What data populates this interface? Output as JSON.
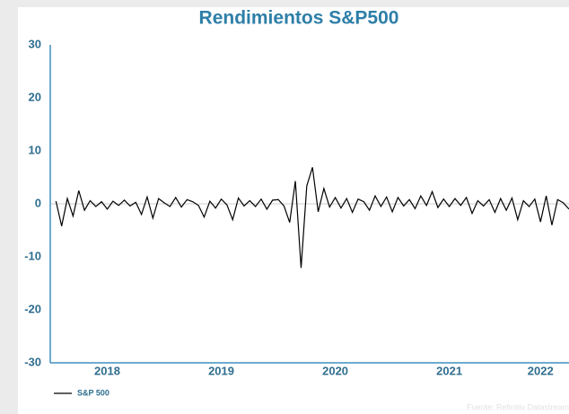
{
  "chart_data": {
    "type": "line",
    "title": "Rendimientos S&P500",
    "source": "Fuente: Refinitiv Datastream",
    "x": [
      2018.05,
      2018.1,
      2018.15,
      2018.2,
      2018.25,
      2018.3,
      2018.35,
      2018.4,
      2018.45,
      2018.5,
      2018.55,
      2018.6,
      2018.65,
      2018.7,
      2018.75,
      2018.8,
      2018.85,
      2018.9,
      2018.95,
      2019.0,
      2019.05,
      2019.1,
      2019.15,
      2019.2,
      2019.25,
      2019.3,
      2019.35,
      2019.4,
      2019.45,
      2019.5,
      2019.55,
      2019.6,
      2019.65,
      2019.7,
      2019.75,
      2019.8,
      2019.85,
      2019.9,
      2019.95,
      2020.0,
      2020.05,
      2020.1,
      2020.15,
      2020.2,
      2020.25,
      2020.3,
      2020.35,
      2020.4,
      2020.45,
      2020.5,
      2020.55,
      2020.6,
      2020.65,
      2020.7,
      2020.75,
      2020.8,
      2020.85,
      2020.9,
      2020.95,
      2021.0,
      2021.05,
      2021.1,
      2021.15,
      2021.2,
      2021.25,
      2021.3,
      2021.35,
      2021.4,
      2021.45,
      2021.5,
      2021.55,
      2021.6,
      2021.65,
      2021.7,
      2021.75,
      2021.8,
      2021.85,
      2021.9,
      2021.95,
      2022.0,
      2022.05,
      2022.1,
      2022.15,
      2022.2,
      2022.25,
      2022.3,
      2022.35,
      2022.4,
      2022.45,
      2022.5,
      2022.55
    ],
    "series": [
      {
        "name": "S&P 500",
        "color": "#000000",
        "values": [
          0.5,
          -4.2,
          1.0,
          -2.3,
          2.5,
          -1.2,
          0.6,
          -0.5,
          0.4,
          -1.0,
          0.5,
          -0.3,
          0.7,
          -0.4,
          0.3,
          -2.0,
          1.3,
          -2.7,
          1.0,
          0.2,
          -0.5,
          1.2,
          -0.6,
          0.8,
          0.4,
          -0.3,
          -2.5,
          0.5,
          -0.8,
          0.9,
          -0.2,
          -3.0,
          1.1,
          -0.4,
          0.6,
          -0.5,
          0.9,
          -1.0,
          0.7,
          0.8,
          -0.4,
          -3.5,
          4.3,
          -12.1,
          3.4,
          6.9,
          -1.5,
          2.9,
          -0.6,
          1.2,
          -0.8,
          1.0,
          -1.6,
          0.9,
          0.4,
          -1.2,
          1.5,
          -0.5,
          1.3,
          -1.5,
          1.2,
          -0.4,
          0.8,
          -0.9,
          1.5,
          -0.3,
          2.3,
          -0.7,
          0.9,
          -0.5,
          1.0,
          -0.3,
          1.2,
          -1.8,
          0.6,
          -0.4,
          0.8,
          -1.6,
          1.0,
          -1.2,
          1.1,
          -3.0,
          0.6,
          -0.5,
          0.9,
          -3.4,
          1.5,
          -4.0,
          0.8,
          0.2,
          -1.0
        ]
      }
    ],
    "xlim": [
      2018.0,
      2022.55
    ],
    "xticks": [
      {
        "value": 2018.5,
        "label": "2018"
      },
      {
        "value": 2019.5,
        "label": "2019"
      },
      {
        "value": 2020.5,
        "label": "2020"
      },
      {
        "value": 2021.5,
        "label": "2021"
      },
      {
        "value": 2022.3,
        "label": "2022"
      }
    ],
    "ylim": [
      -30,
      30
    ],
    "yticks": [
      -30,
      -20,
      -10,
      0,
      10,
      20,
      30
    ],
    "zero_line": true,
    "legend": "bottom-left"
  }
}
